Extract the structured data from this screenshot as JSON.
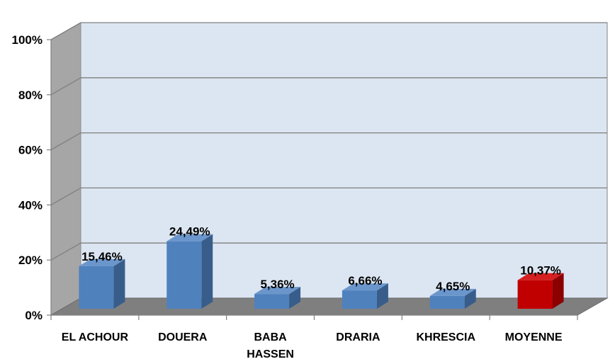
{
  "chart_data": {
    "type": "bar",
    "categories": [
      "EL ACHOUR",
      "DOUERA",
      "BABA HASSEN",
      "DRARIA",
      "KHRESCIA",
      "MOYENNE"
    ],
    "category_lines": [
      [
        "EL ACHOUR"
      ],
      [
        "DOUERA"
      ],
      [
        "BABA",
        "HASSEN"
      ],
      [
        "DRARIA"
      ],
      [
        "KHRESCIA"
      ],
      [
        "MOYENNE"
      ]
    ],
    "values": [
      15.46,
      24.49,
      5.36,
      6.66,
      4.65,
      10.37
    ],
    "data_labels": [
      "15,46%",
      "24,49%",
      "5,36%",
      "6,66%",
      "4,65%",
      "10,37%"
    ],
    "ylim": [
      0,
      100
    ],
    "yticks": [
      0,
      20,
      40,
      60,
      80,
      100
    ],
    "ytick_labels": [
      "0%",
      "20%",
      "40%",
      "60%",
      "80%",
      "100%"
    ],
    "grid": true,
    "style": "3d-column",
    "colors": {
      "bar": "#4f81bd",
      "bar_top": "#6b96cc",
      "bar_side": "#385d8a",
      "highlight_bar": "#c00000",
      "highlight_top": "#d42020",
      "highlight_side": "#8b0000",
      "back_wall": "#dce6f2",
      "side_wall": "#a6a6a6",
      "floor": "#7f7f7f",
      "gridline": "#7f7f7f"
    },
    "highlight_index": 5
  }
}
